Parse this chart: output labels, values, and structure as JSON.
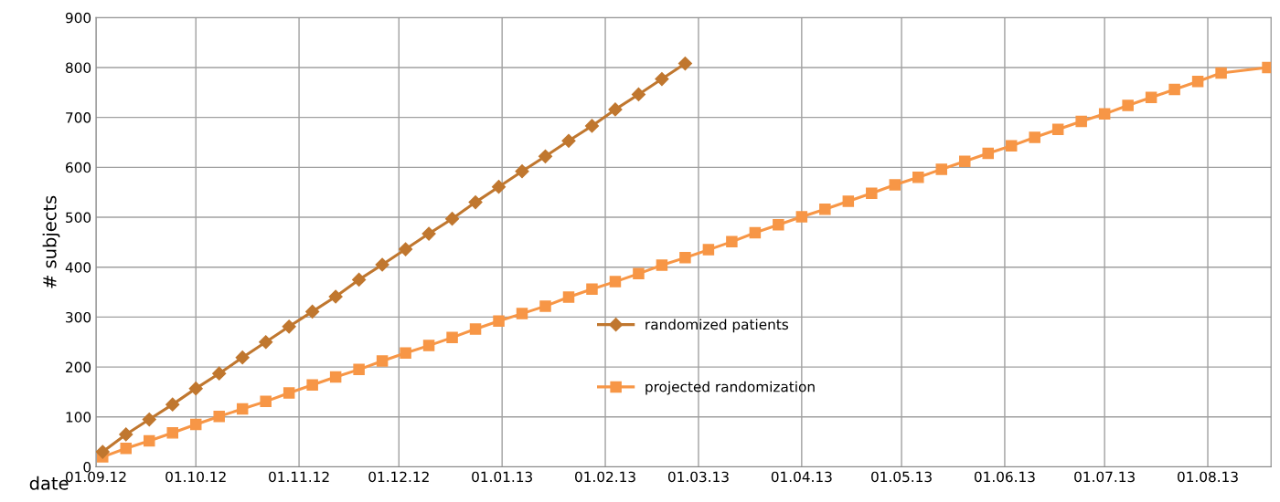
{
  "chart_data": {
    "type": "line",
    "xlabel": "date",
    "ylabel": "# subjects",
    "xlim": [
      "2012-09-01",
      "2013-08-20"
    ],
    "xticks": [
      {
        "value": "2012-09-01",
        "label": "01.09.12"
      },
      {
        "value": "2012-10-01",
        "label": "01.10.12"
      },
      {
        "value": "2012-11-01",
        "label": "01.11.12"
      },
      {
        "value": "2012-12-01",
        "label": "01.12.12"
      },
      {
        "value": "2013-01-01",
        "label": "01.01.13"
      },
      {
        "value": "2013-02-01",
        "label": "01.02.13"
      },
      {
        "value": "2013-03-01",
        "label": "01.03.13"
      },
      {
        "value": "2013-04-01",
        "label": "01.04.13"
      },
      {
        "value": "2013-05-01",
        "label": "01.05.13"
      },
      {
        "value": "2013-06-01",
        "label": "01.06.13"
      },
      {
        "value": "2013-07-01",
        "label": "01.07.13"
      },
      {
        "value": "2013-08-01",
        "label": "01.08.13"
      }
    ],
    "ylim": [
      0,
      900
    ],
    "yticks": [
      0,
      100,
      200,
      300,
      400,
      500,
      600,
      700,
      800,
      900
    ],
    "grid": true,
    "legend": "center",
    "line_style": "solid",
    "series": [
      {
        "name": "randomized patients",
        "color": "#c0772f",
        "marker": "diamond",
        "x": [
          "2012-09-03",
          "2012-09-10",
          "2012-09-17",
          "2012-09-24",
          "2012-10-01",
          "2012-10-08",
          "2012-10-15",
          "2012-10-22",
          "2012-10-29",
          "2012-11-05",
          "2012-11-12",
          "2012-11-19",
          "2012-11-26",
          "2012-12-03",
          "2012-12-10",
          "2012-12-17",
          "2012-12-24",
          "2012-12-31",
          "2013-01-07",
          "2013-01-14",
          "2013-01-21",
          "2013-01-28",
          "2013-02-04",
          "2013-02-11",
          "2013-02-18",
          "2013-02-25"
        ],
        "values": [
          30,
          65,
          95,
          125,
          157,
          187,
          219,
          250,
          281,
          311,
          341,
          375,
          405,
          436,
          467,
          497,
          530,
          561,
          592,
          622,
          653,
          683,
          716,
          746,
          777,
          808
        ]
      },
      {
        "name": "projected randomization",
        "color": "#f79646",
        "marker": "square",
        "x": [
          "2012-09-03",
          "2012-09-10",
          "2012-09-17",
          "2012-09-24",
          "2012-10-01",
          "2012-10-08",
          "2012-10-15",
          "2012-10-22",
          "2012-10-29",
          "2012-11-05",
          "2012-11-12",
          "2012-11-19",
          "2012-11-26",
          "2012-12-03",
          "2012-12-10",
          "2012-12-17",
          "2012-12-24",
          "2012-12-31",
          "2013-01-07",
          "2013-01-14",
          "2013-01-21",
          "2013-01-28",
          "2013-02-04",
          "2013-02-11",
          "2013-02-18",
          "2013-02-25",
          "2013-03-04",
          "2013-03-11",
          "2013-03-18",
          "2013-03-25",
          "2013-04-01",
          "2013-04-08",
          "2013-04-15",
          "2013-04-22",
          "2013-04-29",
          "2013-05-06",
          "2013-05-13",
          "2013-05-20",
          "2013-05-27",
          "2013-06-03",
          "2013-06-10",
          "2013-06-17",
          "2013-06-24",
          "2013-07-01",
          "2013-07-08",
          "2013-07-15",
          "2013-07-22",
          "2013-07-29",
          "2013-08-05",
          "2013-08-19"
        ],
        "values": [
          20,
          37,
          52,
          68,
          85,
          101,
          116,
          131,
          148,
          164,
          180,
          195,
          212,
          228,
          243,
          259,
          276,
          292,
          307,
          322,
          340,
          356,
          371,
          387,
          404,
          419,
          435,
          451,
          469,
          485,
          501,
          516,
          532,
          548,
          565,
          580,
          596,
          612,
          628,
          643,
          660,
          676,
          692,
          707,
          724,
          740,
          756,
          772,
          789,
          800
        ]
      }
    ]
  }
}
